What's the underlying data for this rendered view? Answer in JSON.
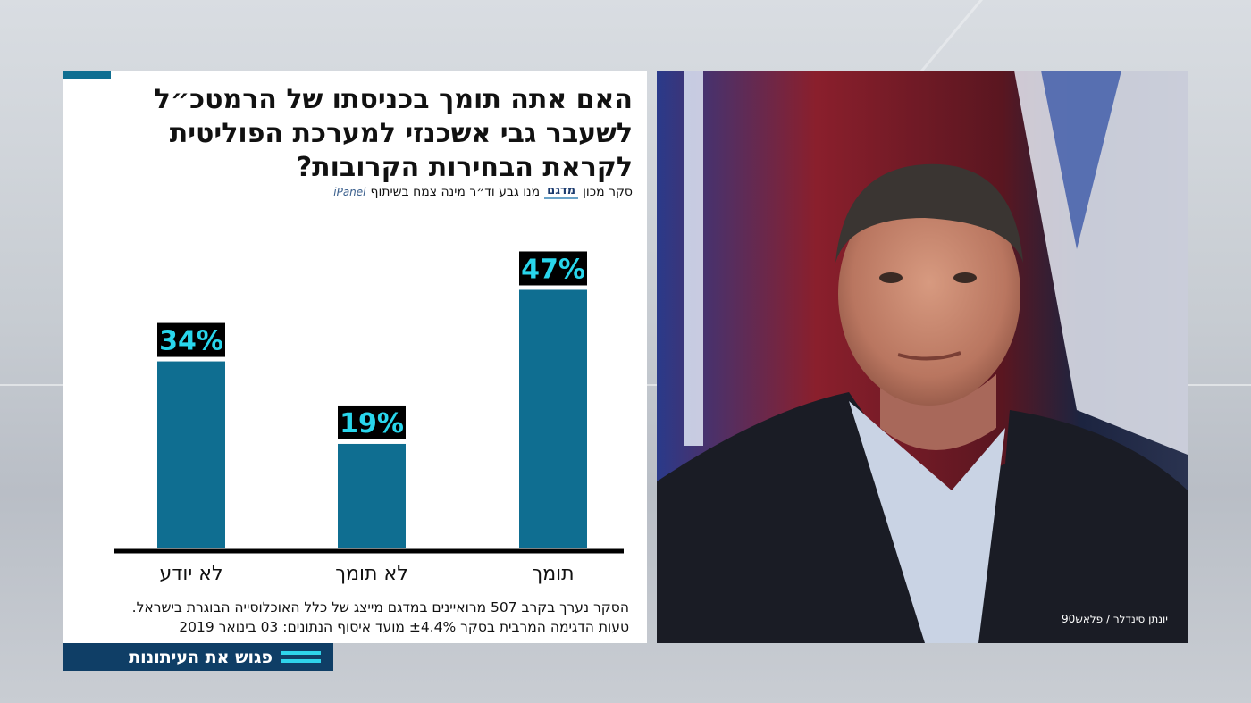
{
  "card": {
    "title": "האם אתה תומך בכניסתו של הרמטכ״ל לשעבר גבי אשכנזי למערכת הפוליטית לקראת הבחירות הקרובות?",
    "source": {
      "prefix": "סקר מכון",
      "madgam_logo": "מדגם",
      "middle": "מנו גבע וד״ר מינה צמח בשיתוף",
      "ipanel_logo": "iPanel"
    },
    "footnote_line1": "הסקר נערך בקרב 507 מרואיינים במדגם מייצג של כלל האוכלוסייה הבוגרת בישראל.",
    "footnote_line2": "טעות הדגימה המרבית בסקר ±4.4% מועד איסוף הנתונים: 03 בינואר 2019"
  },
  "banner": {
    "label": "פגוש את העיתונות",
    "icon": "menu-lines-icon"
  },
  "photo": {
    "credit": "יונתן סינדלר / פלאש90"
  },
  "colors": {
    "bar": "#0f6e91",
    "value_box": "#000000",
    "value_text": "#29d6ec",
    "accent": "#0f6e91",
    "banner": "#0f3e66"
  },
  "chart_data": {
    "type": "bar",
    "categories": [
      "לא יודע",
      "לא תומך",
      "תומך"
    ],
    "values": [
      34,
      19,
      47
    ],
    "value_labels": [
      "34%",
      "19%",
      "47%"
    ],
    "ylim": [
      0,
      50
    ],
    "title": "",
    "xlabel": "",
    "ylabel": "",
    "grid": false,
    "legend": "none"
  }
}
